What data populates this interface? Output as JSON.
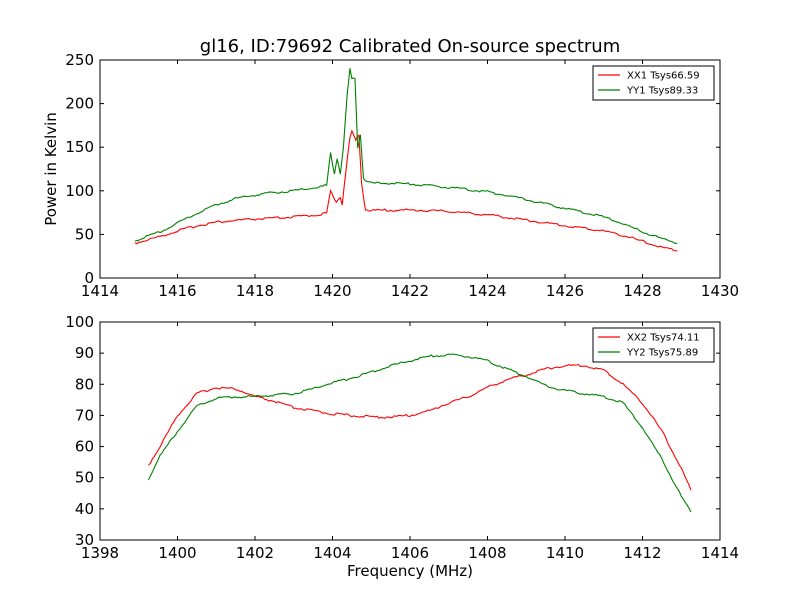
{
  "figure": {
    "title": "gl16, ID:79692 Calibrated On-source spectrum",
    "xlabel": "Frequency (MHz)",
    "ylabel": "Power in Kelvin"
  },
  "colors": {
    "red": "#ff0000",
    "green": "#008000"
  },
  "chart_data": [
    {
      "type": "line",
      "title": "gl16, ID:79692 Calibrated On-source spectrum",
      "xlabel": "",
      "ylabel": "Power in Kelvin",
      "xlim": [
        1414,
        1430
      ],
      "ylim": [
        0,
        250
      ],
      "xticks": [
        "1414",
        "1416",
        "1418",
        "1420",
        "1422",
        "1424",
        "1426",
        "1428",
        "1430"
      ],
      "yticks": [
        "0",
        "50",
        "100",
        "150",
        "200",
        "250"
      ],
      "legend": "top-right",
      "series": [
        {
          "name": "XX1 Tsys66.59",
          "color": "#ff0000",
          "points": [
            [
              1414.9,
              40
            ],
            [
              1415.5,
              47
            ],
            [
              1416,
              54
            ],
            [
              1416.5,
              60
            ],
            [
              1417,
              64
            ],
            [
              1417.5,
              66
            ],
            [
              1418,
              67.5
            ],
            [
              1418.5,
              68.5
            ],
            [
              1419,
              70
            ],
            [
              1419.5,
              72
            ],
            [
              1419.85,
              74
            ],
            [
              1419.95,
              100
            ],
            [
              1420.02,
              92
            ],
            [
              1420.1,
              88
            ],
            [
              1420.2,
              93
            ],
            [
              1420.25,
              85
            ],
            [
              1420.35,
              125
            ],
            [
              1420.45,
              160
            ],
            [
              1420.5,
              168
            ],
            [
              1420.6,
              158
            ],
            [
              1420.68,
              165
            ],
            [
              1420.75,
              110
            ],
            [
              1420.85,
              78
            ],
            [
              1421,
              77.5
            ],
            [
              1422,
              78
            ],
            [
              1423,
              76.5
            ],
            [
              1424,
              72.5
            ],
            [
              1425,
              66.5
            ],
            [
              1426,
              60
            ],
            [
              1427,
              54
            ],
            [
              1427.5,
              49
            ],
            [
              1428,
              42
            ],
            [
              1428.5,
              35
            ],
            [
              1428.9,
              31
            ]
          ]
        },
        {
          "name": "YY1 Tsys89.33",
          "color": "#008000",
          "points": [
            [
              1414.9,
              43
            ],
            [
              1415.5,
              52
            ],
            [
              1416,
              63
            ],
            [
              1416.5,
              74
            ],
            [
              1417,
              84
            ],
            [
              1417.5,
              91
            ],
            [
              1418,
              95
            ],
            [
              1418.5,
              98
            ],
            [
              1419,
              100
            ],
            [
              1419.5,
              103
            ],
            [
              1419.85,
              106
            ],
            [
              1419.95,
              143
            ],
            [
              1420.05,
              120
            ],
            [
              1420.12,
              137
            ],
            [
              1420.2,
              120
            ],
            [
              1420.28,
              150
            ],
            [
              1420.38,
              210
            ],
            [
              1420.45,
              240
            ],
            [
              1420.5,
              228
            ],
            [
              1420.58,
              230
            ],
            [
              1420.65,
              150
            ],
            [
              1420.72,
              165
            ],
            [
              1420.8,
              115
            ],
            [
              1420.9,
              110
            ],
            [
              1421,
              109
            ],
            [
              1422,
              108
            ],
            [
              1423,
              104
            ],
            [
              1424,
              99
            ],
            [
              1425,
              90
            ],
            [
              1426,
              80
            ],
            [
              1427,
              70
            ],
            [
              1427.5,
              62
            ],
            [
              1428,
              53
            ],
            [
              1428.5,
              45
            ],
            [
              1428.9,
              40
            ]
          ]
        }
      ]
    },
    {
      "type": "line",
      "title": "",
      "xlabel": "Frequency (MHz)",
      "ylabel": "",
      "xlim": [
        1398,
        1414
      ],
      "ylim": [
        30,
        100
      ],
      "xticks": [
        "1398",
        "1400",
        "1402",
        "1404",
        "1406",
        "1408",
        "1410",
        "1412",
        "1414"
      ],
      "yticks": [
        "30",
        "40",
        "50",
        "60",
        "70",
        "80",
        "90",
        "100"
      ],
      "legend": "top-right",
      "series": [
        {
          "name": "XX2 Tsys74.11",
          "color": "#ff0000",
          "points": [
            [
              1399.25,
              54
            ],
            [
              1399.5,
              59
            ],
            [
              1400,
              70
            ],
            [
              1400.5,
              77
            ],
            [
              1401,
              79
            ],
            [
              1401.5,
              78.5
            ],
            [
              1402,
              76
            ],
            [
              1402.5,
              74.5
            ],
            [
              1403,
              72.5
            ],
            [
              1403.5,
              71.5
            ],
            [
              1404,
              70.5
            ],
            [
              1404.5,
              70
            ],
            [
              1405,
              69.5
            ],
            [
              1405.5,
              69.5
            ],
            [
              1406,
              70
            ],
            [
              1406.5,
              71.5
            ],
            [
              1407,
              74
            ],
            [
              1407.5,
              76
            ],
            [
              1408,
              79
            ],
            [
              1408.5,
              81.5
            ],
            [
              1409,
              83
            ],
            [
              1409.5,
              85
            ],
            [
              1410,
              86
            ],
            [
              1410.5,
              86
            ],
            [
              1411,
              84.5
            ],
            [
              1411.5,
              80
            ],
            [
              1412,
              74
            ],
            [
              1412.5,
              65
            ],
            [
              1413,
              53
            ],
            [
              1413.25,
              46
            ]
          ]
        },
        {
          "name": "YY2 Tsys75.89",
          "color": "#008000",
          "points": [
            [
              1399.25,
              49.5
            ],
            [
              1399.5,
              56
            ],
            [
              1400,
              65
            ],
            [
              1400.5,
              73
            ],
            [
              1401,
              75.5
            ],
            [
              1401.5,
              76
            ],
            [
              1402,
              76
            ],
            [
              1402.5,
              76.5
            ],
            [
              1403,
              77
            ],
            [
              1403.5,
              78.5
            ],
            [
              1404,
              80.5
            ],
            [
              1404.5,
              82
            ],
            [
              1405,
              84
            ],
            [
              1405.5,
              86
            ],
            [
              1406,
              87.5
            ],
            [
              1406.5,
              89
            ],
            [
              1407,
              89.5
            ],
            [
              1407.5,
              89
            ],
            [
              1408,
              87.5
            ],
            [
              1408.5,
              85
            ],
            [
              1409,
              82.5
            ],
            [
              1409.5,
              79.5
            ],
            [
              1410,
              78
            ],
            [
              1410.5,
              77
            ],
            [
              1411,
              76
            ],
            [
              1411.5,
              74
            ],
            [
              1412,
              66
            ],
            [
              1412.5,
              56
            ],
            [
              1413,
              44
            ],
            [
              1413.25,
              39
            ]
          ]
        }
      ]
    }
  ]
}
